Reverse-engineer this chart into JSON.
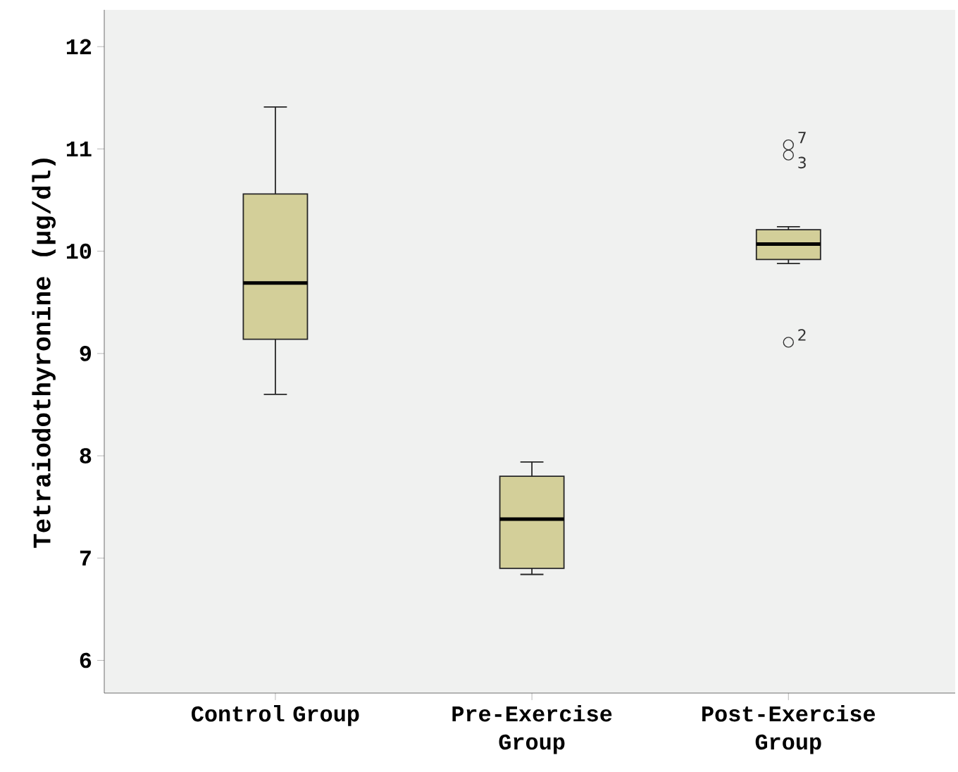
{
  "chart_data": {
    "type": "box",
    "ylabel": "Tetraiodothyronine (µg/dl)",
    "categories": [
      "Control Group",
      "Pre-Exercise Group",
      "Post-Exercise Group"
    ],
    "boxes": [
      {
        "low": 8.6,
        "q1": 9.14,
        "median": 9.69,
        "q3": 10.56,
        "high": 11.41
      },
      {
        "low": 6.84,
        "q1": 6.9,
        "median": 7.38,
        "q3": 7.8,
        "high": 7.94
      },
      {
        "low": 9.88,
        "q1": 9.92,
        "median": 10.07,
        "q3": 10.21,
        "high": 10.24,
        "outliers": [
          11.04,
          10.94,
          9.11
        ]
      }
    ],
    "color": "#d3cf99",
    "ylim": [
      5.68,
      12.36
    ],
    "yticks": [
      6,
      7,
      8,
      9,
      10,
      11,
      12
    ],
    "annotations": [
      "7",
      "3",
      "2"
    ]
  }
}
